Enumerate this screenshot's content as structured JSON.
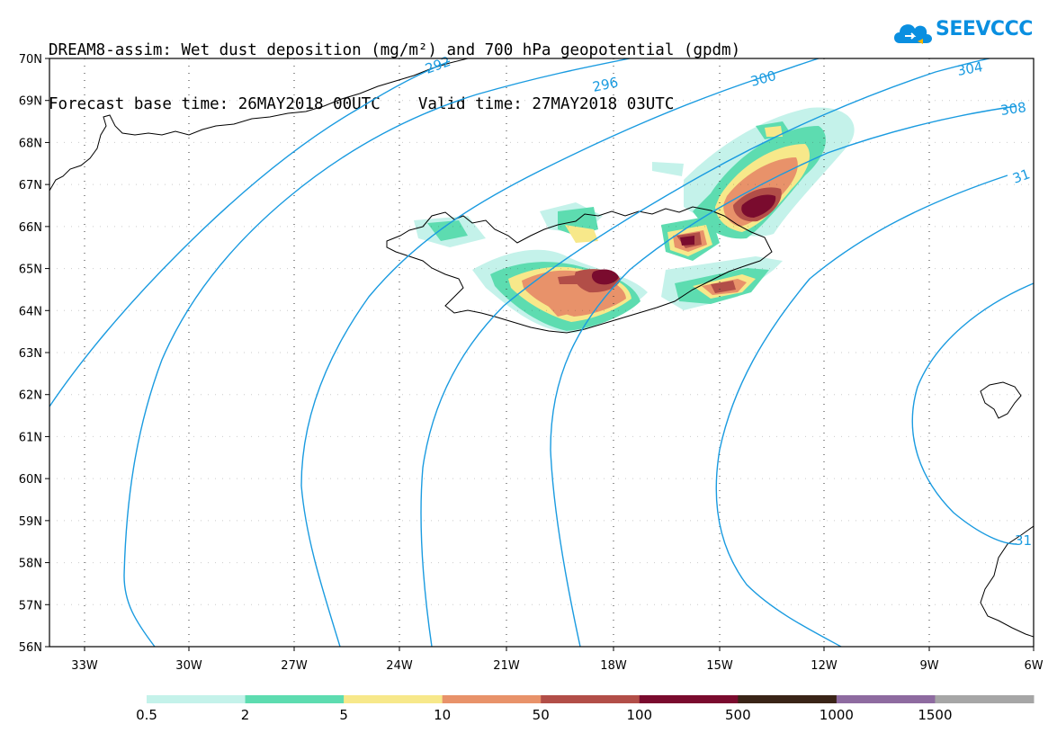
{
  "title": {
    "line1": "DREAM8-assim: Wet dust deposition (mg/m²) and 700 hPa geopotential (gpdm)",
    "line2": "Forecast base time: 26MAY2018 00UTC    Valid time: 27MAY2018 03UTC"
  },
  "logo": {
    "text": "SEEVCCC",
    "icon": "cloud-icon"
  },
  "map": {
    "lat_labels": [
      "70N",
      "69N",
      "68N",
      "67N",
      "66N",
      "65N",
      "64N",
      "63N",
      "62N",
      "61N",
      "60N",
      "59N",
      "58N",
      "57N",
      "56N"
    ],
    "lon_labels": [
      "33W",
      "30W",
      "27W",
      "24W",
      "21W",
      "18W",
      "15W",
      "12W",
      "9W",
      "6W"
    ],
    "grid": true,
    "contour_color": "#1a9be0",
    "contour_labels": [
      "292",
      "296",
      "300",
      "304",
      "308",
      "31",
      "31"
    ]
  },
  "legend": {
    "thresholds": [
      "0.5",
      "2",
      "5",
      "10",
      "50",
      "100",
      "500",
      "1000",
      "1500"
    ],
    "colors": [
      "#c4f2ea",
      "#5ddcb0",
      "#f7e88a",
      "#e8926a",
      "#b24e48",
      "#7a0b2e",
      "#3a2417",
      "#8e6ba0",
      "#a6a6a6"
    ]
  }
}
